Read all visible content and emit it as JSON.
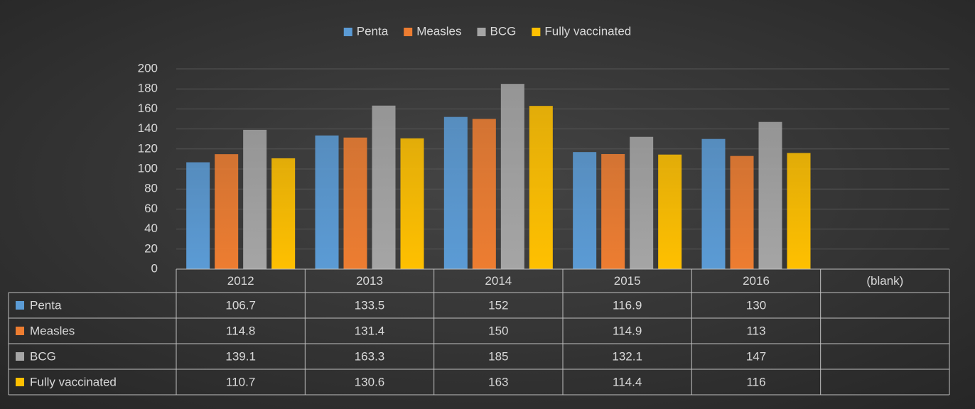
{
  "chart_data": {
    "type": "bar",
    "categories": [
      "2012",
      "2013",
      "2014",
      "2015",
      "2016",
      "(blank)"
    ],
    "series": [
      {
        "name": "Penta",
        "color": "#5b9bd5",
        "values": [
          106.7,
          133.5,
          152,
          116.9,
          130,
          null
        ]
      },
      {
        "name": "Measles",
        "color": "#ed7d31",
        "values": [
          114.8,
          131.4,
          150,
          114.9,
          113,
          null
        ]
      },
      {
        "name": "BCG",
        "color": "#a5a5a5",
        "values": [
          139.1,
          163.3,
          185,
          132.1,
          147,
          null
        ]
      },
      {
        "name": "Fully vaccinated",
        "color": "#ffc000",
        "values": [
          110.7,
          130.6,
          163,
          114.4,
          116,
          null
        ]
      }
    ],
    "ylim": [
      0,
      200
    ],
    "yticks": [
      0,
      20,
      40,
      60,
      80,
      100,
      120,
      140,
      160,
      180,
      200
    ],
    "grid": true,
    "legend": "top",
    "data_table": true
  }
}
